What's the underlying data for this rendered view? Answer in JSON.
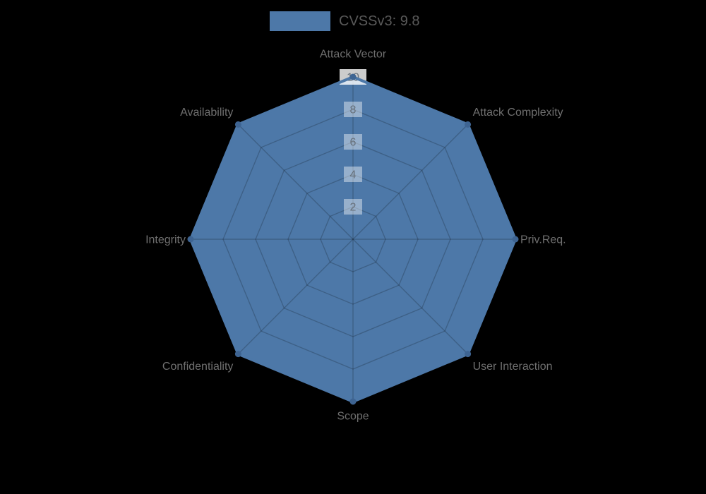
{
  "page": {
    "background": "#000000"
  },
  "legend": {
    "label": "CVSSv3: 9.8",
    "swatch_color": "#4d78a8",
    "text_color": "#595959",
    "position": "top"
  },
  "chart_data": {
    "type": "radar",
    "categories": [
      "Attack Vector",
      "Attack Complexity",
      "Priv.Req.",
      "User Interaction",
      "Scope",
      "Confidentiality",
      "Integrity",
      "Availability"
    ],
    "series": [
      {
        "name": "CVSSv3: 9.8",
        "values": [
          10,
          10,
          10,
          10,
          10,
          10,
          10,
          10
        ]
      }
    ],
    "rlim": [
      0,
      10
    ],
    "radial_ticks": [
      2,
      4,
      6,
      8,
      10
    ],
    "grid": true,
    "legend_position": "top",
    "style": {
      "fill_color": "#4d78a8",
      "border_color": "#4d78a8",
      "marker_color": "#3e6492",
      "grid_color": "rgba(0,0,0,0.2)",
      "tick_backdrop_color": "#ffffff",
      "tick_backdrop_opacity_normal": 0.42,
      "tick_backdrop_opacity_max": 0.8,
      "tick_text_color": "#666f79",
      "axis_label_color": "#6f6f6f"
    }
  }
}
